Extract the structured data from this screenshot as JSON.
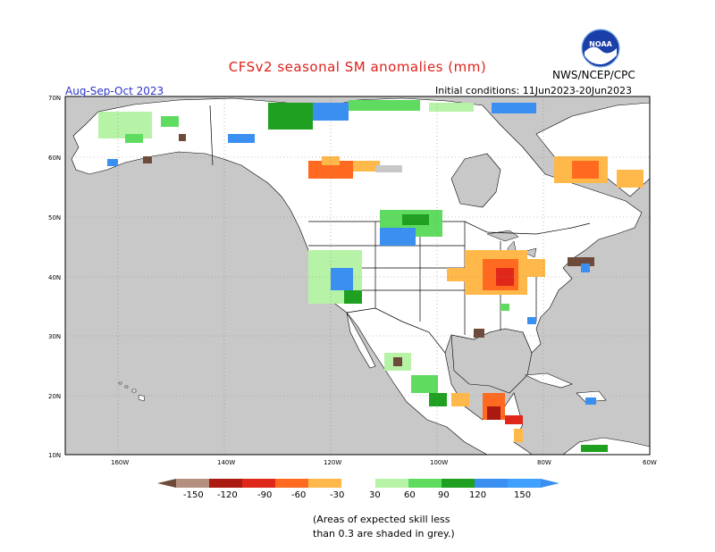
{
  "header": {
    "title": "CFSv2 seasonal SM anomalies (mm)",
    "season": "Aug-Sep-Oct 2023",
    "initial_conditions": "Initial conditions: 11Jun2023-20Jun2023",
    "agency": "NWS/NCEP/CPC",
    "logo_text": "NOAA"
  },
  "map": {
    "lat_labels": [
      "70N",
      "60N",
      "50N",
      "40N",
      "30N",
      "20N",
      "10N"
    ],
    "lon_labels": [
      "160W",
      "140W",
      "120W",
      "100W",
      "80W",
      "60W"
    ],
    "colors": {
      "ocean": "#c8c8c8",
      "land": "#ffffff",
      "neutral_grey": "#c8c8c8"
    }
  },
  "colorbar": {
    "labels": [
      "-150",
      "-120",
      "-90",
      "-60",
      "-30",
      "30",
      "60",
      "90",
      "120",
      "150"
    ],
    "colors": [
      "#6e4a3a",
      "#b59080",
      "#aa1a10",
      "#e0281a",
      "#ff6a20",
      "#ffb84a",
      "#ffffff",
      "#b6f3a6",
      "#5fdc5f",
      "#20a020",
      "#3a8ff0",
      "#3fa0ff"
    ]
  },
  "footnote": {
    "line1": "(Areas of expected skill less",
    "line2": "than 0.3 are shaded in grey.)"
  }
}
